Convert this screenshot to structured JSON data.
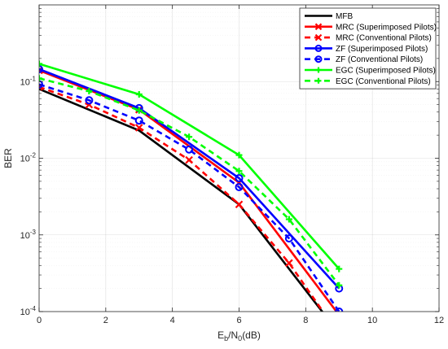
{
  "chart_data": {
    "type": "line",
    "xlabel_parts": {
      "base": "E",
      "sub1": "b",
      "slash": "/N",
      "sub2": "0",
      "tail": "(dB)"
    },
    "ylabel": "BER",
    "xlim": [
      0,
      12
    ],
    "ylim": [
      0.0001,
      1
    ],
    "yscale": "log",
    "xticks": [
      0,
      2,
      4,
      6,
      8,
      10,
      12
    ],
    "xtick_labels": [
      "0",
      "2",
      "4",
      "6",
      "8",
      "10",
      "12"
    ],
    "yticks": [
      0.0001,
      0.001,
      0.01,
      0.1
    ],
    "ytick_labels": [
      {
        "base": "10",
        "exp": "-4"
      },
      {
        "base": "10",
        "exp": "-3"
      },
      {
        "base": "10",
        "exp": "-2"
      },
      {
        "base": "10",
        "exp": "-1"
      }
    ],
    "grid": true,
    "legend_position": "top-right",
    "series": [
      {
        "name": "MFB",
        "color": "#000000",
        "dash": "solid",
        "marker": "none",
        "x": [
          0,
          3,
          6,
          9
        ],
        "y": [
          0.08,
          0.023,
          0.0025,
          5.2e-05
        ]
      },
      {
        "name": "MRC (Superimposed Pilots)",
        "color": "#ff0000",
        "dash": "solid",
        "marker": "x",
        "x": [
          0,
          3,
          6,
          9
        ],
        "y": [
          0.14,
          0.043,
          0.0048,
          9e-05
        ]
      },
      {
        "name": "MRC (Conventional Pilots)",
        "color": "#ff0000",
        "dash": "dashed",
        "marker": "x",
        "x": [
          0,
          1.5,
          3,
          4.5,
          6,
          7.5,
          9
        ],
        "y": [
          0.085,
          0.05,
          0.025,
          0.0095,
          0.0025,
          0.00043,
          5e-05
        ]
      },
      {
        "name": "ZF (Superimposed Pilots)",
        "color": "#0000ff",
        "dash": "solid",
        "marker": "o",
        "x": [
          0,
          3,
          6,
          9
        ],
        "y": [
          0.145,
          0.045,
          0.0055,
          0.0002
        ]
      },
      {
        "name": "ZF (Conventional Pilots)",
        "color": "#0000ff",
        "dash": "dashed",
        "marker": "o",
        "x": [
          0,
          1.5,
          3,
          4.5,
          6,
          7.5,
          9
        ],
        "y": [
          0.092,
          0.057,
          0.031,
          0.013,
          0.0042,
          0.0009,
          0.0001
        ]
      },
      {
        "name": "EGC (Superimposed Pilots)",
        "color": "#00ff00",
        "dash": "solid",
        "marker": "+",
        "x": [
          0,
          3,
          6,
          9
        ],
        "y": [
          0.17,
          0.068,
          0.011,
          0.00036
        ]
      },
      {
        "name": "EGC (Conventional Pilots)",
        "color": "#00ff00",
        "dash": "dashed",
        "marker": "+",
        "x": [
          0,
          1.5,
          3,
          4.5,
          6,
          7.5,
          9
        ],
        "y": [
          0.11,
          0.075,
          0.042,
          0.019,
          0.0068,
          0.0016,
          0.00022
        ]
      }
    ]
  }
}
